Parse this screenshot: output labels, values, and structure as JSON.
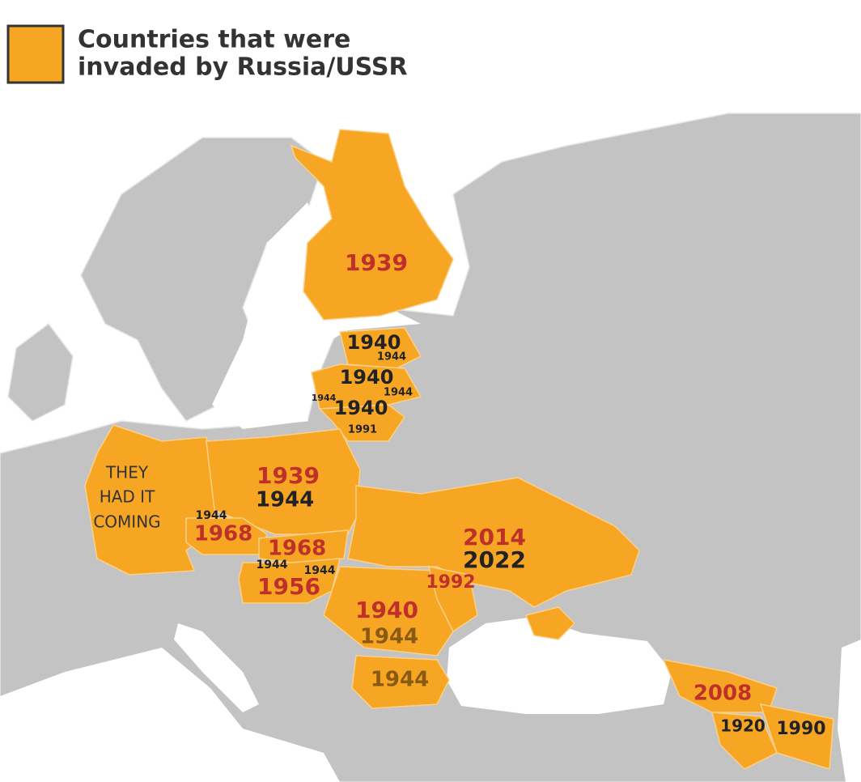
{
  "legend": {
    "lines": [
      "Countries that were",
      "invaded by Russia/USSR"
    ]
  },
  "labels": [
    [
      "1939"
    ],
    [
      "1940",
      "1944"
    ],
    [
      "1940",
      "1944",
      "1944"
    ],
    [
      "1940",
      "1991"
    ],
    [
      "THEY",
      "HAD IT",
      "COMING"
    ],
    [
      "1939",
      "1944"
    ],
    [
      "1944",
      "1968"
    ],
    [
      "1968"
    ],
    [
      "1944",
      "1944",
      "1956"
    ],
    [
      "2014",
      "2022"
    ],
    [
      "1992"
    ],
    [
      "1940",
      "1944"
    ],
    [
      "1944"
    ],
    [
      "2008"
    ],
    [
      "1920"
    ],
    [
      "1990"
    ]
  ]
}
